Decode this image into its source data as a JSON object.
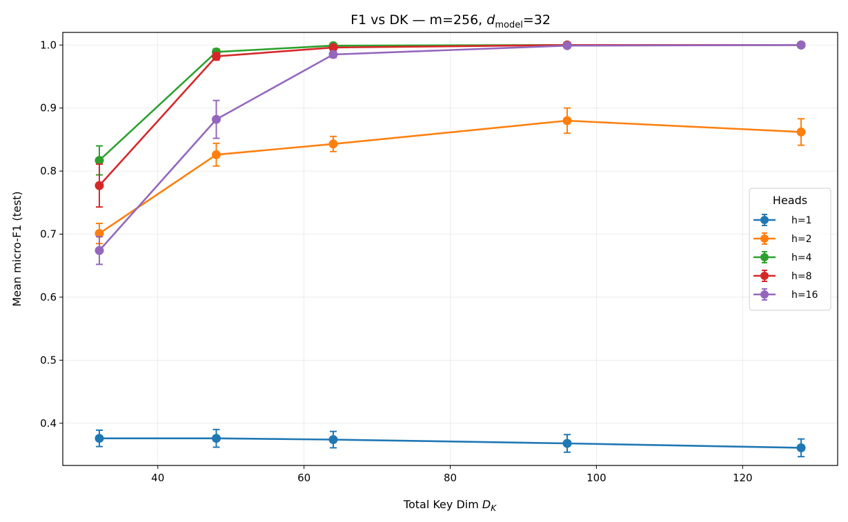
{
  "chart_data": {
    "type": "line",
    "title_main": "F1 vs DK — m=256, ",
    "title_d": "d",
    "title_sub": "model",
    "title_tail": "=32",
    "xlabel_main": "Total Key Dim ",
    "xlabel_var": "D",
    "xlabel_sub": "K",
    "ylabel": "Mean micro-F1 (test)",
    "xlim": [
      27,
      133
    ],
    "ylim": [
      0.333,
      1.02
    ],
    "xticks": [
      40,
      60,
      80,
      100,
      120
    ],
    "yticks": [
      0.4,
      0.5,
      0.6,
      0.7,
      0.8,
      0.9,
      1.0
    ],
    "ytick_labels": [
      "0.4",
      "0.5",
      "0.6",
      "0.7",
      "0.8",
      "0.9",
      "1.0"
    ],
    "grid": true,
    "x": [
      32,
      48,
      64,
      96,
      128
    ],
    "legend": {
      "title": "Heads",
      "placement": "center-right"
    },
    "series": [
      {
        "name": "h=1",
        "color": "#1f77b4",
        "values": [
          0.376,
          0.376,
          0.374,
          0.368,
          0.361
        ],
        "errors": [
          0.013,
          0.014,
          0.013,
          0.014,
          0.014
        ]
      },
      {
        "name": "h=2",
        "color": "#ff7f0e",
        "values": [
          0.701,
          0.826,
          0.843,
          0.88,
          0.862
        ],
        "errors": [
          0.016,
          0.018,
          0.012,
          0.02,
          0.021
        ]
      },
      {
        "name": "h=4",
        "color": "#2ca02c",
        "values": [
          0.817,
          0.989,
          0.999,
          1.0,
          1.0
        ],
        "errors": [
          0.023,
          0.005,
          0.002,
          0.001,
          0.001
        ]
      },
      {
        "name": "h=8",
        "color": "#d62728",
        "values": [
          0.777,
          0.982,
          0.996,
          1.0,
          1.0
        ],
        "errors": [
          0.034,
          0.006,
          0.003,
          0.001,
          0.001
        ]
      },
      {
        "name": "h=16",
        "color": "#9467bd",
        "values": [
          0.674,
          0.882,
          0.985,
          0.999,
          1.0
        ],
        "errors": [
          0.022,
          0.03,
          0.005,
          0.002,
          0.001
        ]
      }
    ]
  }
}
